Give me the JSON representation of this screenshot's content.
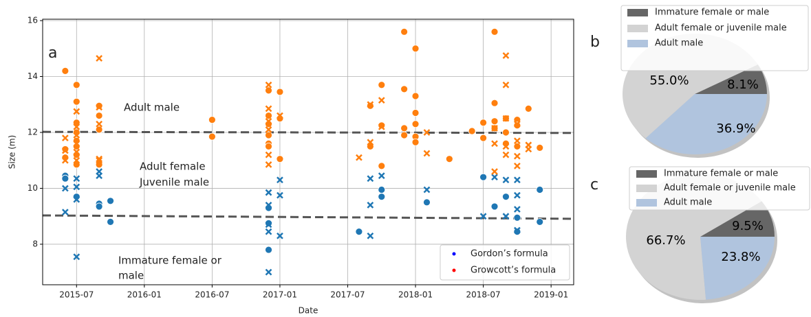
{
  "chart_data": [
    {
      "type": "scatter",
      "panel": "a",
      "x_label": "Date",
      "y_label": "Size (m)",
      "xlim": [
        "2015-04",
        "2019-03"
      ],
      "xticks": [
        "2015-07",
        "2016-01",
        "2016-07",
        "2017-01",
        "2017-07",
        "2018-01",
        "2018-07",
        "2019-01"
      ],
      "ylim": [
        6.55,
        16.05
      ],
      "yticks": [
        8,
        10,
        12,
        14,
        16
      ],
      "grid": true,
      "legend": "lower right",
      "annotations": [
        "Adult male",
        "Adult female",
        "Juvenile male",
        "Immature female or",
        "male"
      ],
      "thresholds": [
        {
          "x": [
            "2015-04",
            "2019-03"
          ],
          "y": [
            12.02,
            11.98
          ],
          "color": "#555555"
        },
        {
          "x": [
            "2015-04",
            "2019-03"
          ],
          "y": [
            9.03,
            8.91
          ],
          "color": "#555555"
        }
      ],
      "series": [
        {
          "name": "Gordon’s formula",
          "color": "#1f77b4",
          "legend_color": "#0000ff",
          "x": [
            "2015-06",
            "2015-06",
            "2015-07",
            "2015-09",
            "2015-09",
            "2015-10",
            "2015-10",
            "2016-12",
            "2016-12",
            "2016-12",
            "2017-08",
            "2017-10",
            "2017-10",
            "2018-02",
            "2018-07",
            "2018-08",
            "2018-09",
            "2018-10",
            "2018-10",
            "2018-12",
            "2018-12",
            "2015-06",
            "2015-06",
            "2015-07",
            "2015-07",
            "2015-07",
            "2015-07",
            "2015-09",
            "2015-09",
            "2016-12",
            "2016-12",
            "2016-12",
            "2016-12",
            "2016-12",
            "2017-01",
            "2017-01",
            "2017-01",
            "2017-09",
            "2017-09",
            "2017-09",
            "2017-10",
            "2018-02",
            "2018-07",
            "2018-08",
            "2018-09",
            "2018-09",
            "2018-10",
            "2018-10",
            "2018-10",
            "2018-10"
          ],
          "values": [
            10.45,
            10.35,
            9.7,
            9.45,
            9.35,
            9.55,
            8.8,
            9.3,
            8.75,
            7.8,
            8.45,
            9.95,
            9.7,
            9.5,
            10.4,
            9.35,
            9.7,
            8.95,
            8.45,
            9.95,
            8.8,
            9.15,
            10.0,
            10.35,
            9.6,
            10.05,
            7.55,
            10.6,
            10.45,
            9.85,
            9.4,
            8.7,
            8.45,
            7.0,
            10.3,
            9.75,
            8.3,
            10.35,
            9.4,
            8.3,
            10.45,
            9.95,
            9.0,
            10.4,
            10.3,
            9.0,
            10.3,
            9.75,
            9.25,
            8.5
          ],
          "markers": [
            "o",
            "o",
            "o",
            "o",
            "o",
            "o",
            "o",
            "o",
            "o",
            "o",
            "o",
            "o",
            "o",
            "o",
            "o",
            "o",
            "o",
            "o",
            "o",
            "o",
            "o",
            "x",
            "x",
            "x",
            "x",
            "x",
            "x",
            "x",
            "x",
            "x",
            "x",
            "x",
            "x",
            "x",
            "x",
            "x",
            "x",
            "x",
            "x",
            "x",
            "x",
            "x",
            "x",
            "x",
            "x",
            "x",
            "x",
            "x",
            "x",
            "x"
          ]
        },
        {
          "name": "Growcott’s formula",
          "color": "#ff7f0e",
          "legend_color": "#ff0000",
          "x": [
            "2015-06",
            "2015-06",
            "2015-06",
            "2015-07",
            "2015-07",
            "2015-07",
            "2015-07",
            "2015-07",
            "2015-07",
            "2015-07",
            "2015-07",
            "2015-09",
            "2015-09",
            "2015-09",
            "2015-09",
            "2016-07",
            "2016-07",
            "2016-12",
            "2016-12",
            "2016-12",
            "2016-12",
            "2016-12",
            "2016-12",
            "2017-01",
            "2017-01",
            "2017-01",
            "2017-09",
            "2017-09",
            "2017-10",
            "2017-10",
            "2017-10",
            "2017-12",
            "2017-12",
            "2017-12",
            "2017-12",
            "2018-01",
            "2018-01",
            "2018-01",
            "2018-01",
            "2018-01",
            "2018-01",
            "2018-04",
            "2018-06",
            "2018-07",
            "2018-07",
            "2018-08",
            "2018-08",
            "2018-08",
            "2018-08",
            "2018-09",
            "2018-09",
            "2018-09",
            "2018-10",
            "2018-10",
            "2018-10",
            "2018-11",
            "2018-12",
            "2015-06",
            "2015-06",
            "2015-06",
            "2015-07",
            "2015-07",
            "2015-07",
            "2015-07",
            "2015-07",
            "2015-07",
            "2015-09",
            "2015-09",
            "2015-09",
            "2015-09",
            "2015-09",
            "2016-12",
            "2016-12",
            "2016-12",
            "2016-12",
            "2016-12",
            "2016-12",
            "2017-01",
            "2017-08",
            "2017-09",
            "2017-09",
            "2017-10",
            "2017-10",
            "2018-02",
            "2018-02",
            "2018-08",
            "2018-08",
            "2018-08",
            "2018-09",
            "2018-09",
            "2018-09",
            "2018-09",
            "2018-09",
            "2018-10",
            "2018-10",
            "2018-10",
            "2018-10",
            "2018-11",
            "2018-11"
          ],
          "values": [
            14.2,
            11.4,
            11.1,
            13.7,
            13.1,
            12.35,
            12.0,
            11.7,
            11.5,
            11.2,
            10.85,
            12.95,
            12.6,
            12.1,
            10.85,
            12.45,
            11.85,
            13.5,
            12.6,
            12.3,
            11.9,
            11.6,
            11.5,
            13.45,
            12.5,
            11.05,
            12.95,
            11.5,
            13.7,
            12.25,
            10.8,
            15.6,
            13.55,
            12.15,
            11.9,
            15.0,
            13.3,
            12.7,
            12.3,
            11.85,
            11.65,
            11.05,
            12.05,
            12.35,
            11.8,
            15.6,
            13.05,
            12.4,
            12.15,
            12.5,
            12.0,
            11.6,
            12.45,
            12.25,
            11.5,
            12.85,
            11.45,
            11.8,
            11.35,
            11.0,
            12.75,
            12.2,
            11.9,
            11.6,
            11.3,
            11.0,
            14.65,
            12.9,
            12.3,
            11.05,
            11.0,
            13.7,
            12.85,
            12.4,
            12.1,
            11.2,
            10.85,
            12.6,
            11.1,
            13.0,
            11.65,
            12.2,
            13.15,
            12.0,
            11.25,
            12.15,
            11.6,
            10.6,
            14.75,
            13.7,
            12.5,
            11.5,
            11.2,
            12.3,
            11.7,
            11.15,
            10.8,
            11.55,
            11.4
          ],
          "markers": [
            "o",
            "o",
            "o",
            "o",
            "o",
            "o",
            "o",
            "o",
            "o",
            "o",
            "o",
            "o",
            "o",
            "o",
            "o",
            "o",
            "o",
            "o",
            "o",
            "o",
            "o",
            "o",
            "o",
            "o",
            "o",
            "o",
            "o",
            "o",
            "o",
            "o",
            "o",
            "o",
            "o",
            "o",
            "o",
            "o",
            "o",
            "o",
            "o",
            "o",
            "o",
            "o",
            "o",
            "o",
            "o",
            "o",
            "o",
            "o",
            "o",
            "o",
            "o",
            "o",
            "o",
            "o",
            "o",
            "o",
            "o",
            "x",
            "x",
            "x",
            "x",
            "x",
            "x",
            "x",
            "x",
            "x",
            "x",
            "x",
            "x",
            "x",
            "x",
            "x",
            "x",
            "x",
            "x",
            "x",
            "x",
            "x",
            "x",
            "x",
            "x",
            "x",
            "x",
            "x",
            "x",
            "x",
            "x",
            "x",
            "x",
            "x",
            "x",
            "x",
            "x",
            "x",
            "x",
            "x",
            "x",
            "x",
            "x"
          ]
        }
      ]
    },
    {
      "type": "pie",
      "panel": "b",
      "categories": [
        "Immature female or male",
        "Adult female or juvenile male",
        "Adult male"
      ],
      "values": [
        8.1,
        55.0,
        36.9
      ],
      "value_labels": [
        "8.1%",
        "55.0%",
        "36.9%"
      ],
      "colors": [
        "#666666",
        "#d3d3d3",
        "#b0c4de"
      ]
    },
    {
      "type": "pie",
      "panel": "c",
      "categories": [
        "Immature female or male",
        "Adult female or juvenile male",
        "Adult male"
      ],
      "values": [
        9.5,
        66.7,
        23.8
      ],
      "value_labels": [
        "9.5%",
        "66.7%",
        "23.8%"
      ],
      "colors": [
        "#666666",
        "#d3d3d3",
        "#b0c4de"
      ]
    }
  ]
}
